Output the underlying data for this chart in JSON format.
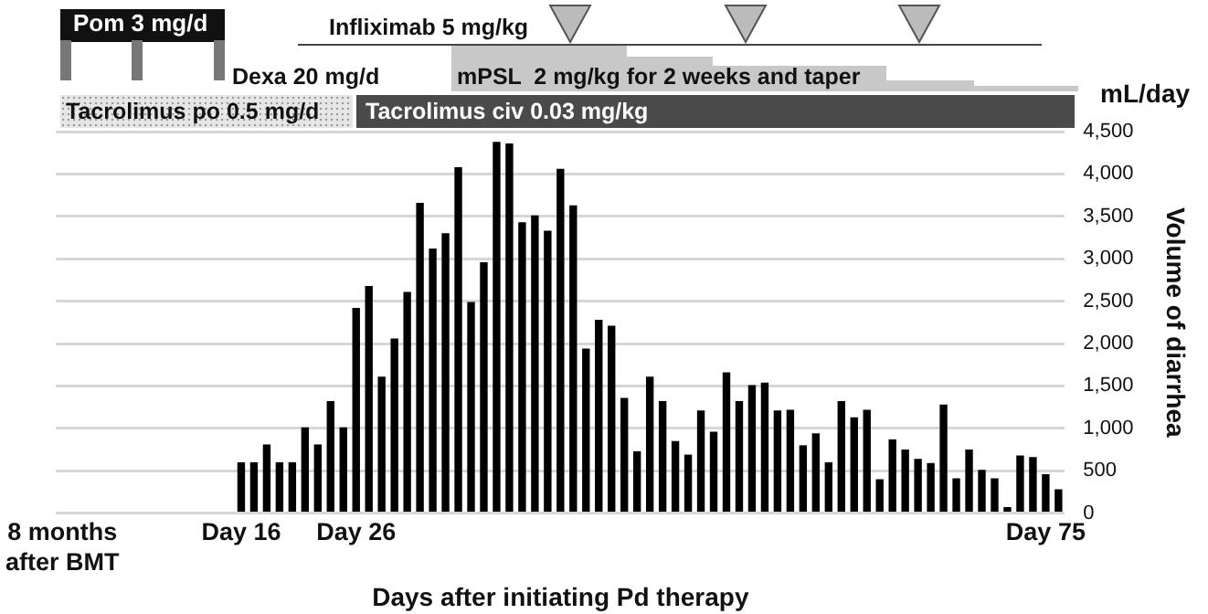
{
  "chart_data": {
    "type": "bar",
    "xlabel": "Days after initiating Pd therapy",
    "ylabel": "Volume of diarrhea",
    "annotations": [
      "Pom 3 mg/d",
      "Dexa 20 mg/d",
      "Infliximab 5 mg/kg",
      "mPSL  2 mg/kg for 2 weeks and taper",
      "Tacrolimus po 0.5 mg/d",
      "Tacrolimus civ 0.03 mg/kg",
      "mL/day"
    ],
    "categories": [
      "8 months\nafter BMT",
      null,
      null,
      null,
      null,
      null,
      null,
      null,
      null,
      null,
      null,
      null,
      null,
      null,
      "Day 16",
      null,
      null,
      null,
      null,
      null,
      null,
      null,
      null,
      "Day 26",
      null,
      null,
      null,
      null,
      null,
      null,
      null,
      null,
      null,
      null,
      null,
      null,
      null,
      null,
      null,
      null,
      null,
      null,
      null,
      null,
      null,
      null,
      null,
      null,
      null,
      null,
      null,
      null,
      null,
      null,
      null,
      null,
      null,
      null,
      null,
      null,
      null,
      null,
      null,
      null,
      null,
      null,
      null,
      null,
      null,
      null,
      null,
      null,
      null,
      null,
      null,
      null,
      null,
      "Day 75",
      null
    ],
    "values": [
      null,
      null,
      null,
      null,
      null,
      null,
      null,
      null,
      null,
      null,
      null,
      null,
      null,
      null,
      600,
      600,
      810,
      600,
      600,
      1010,
      810,
      1320,
      1010,
      2420,
      2680,
      1610,
      2060,
      2610,
      3660,
      3120,
      3300,
      4080,
      2490,
      2960,
      4380,
      4360,
      3430,
      3510,
      3330,
      4060,
      3630,
      1940,
      2280,
      2210,
      1360,
      730,
      1610,
      1320,
      850,
      690,
      1210,
      960,
      1660,
      1320,
      1510,
      1540,
      1210,
      1220,
      800,
      940,
      600,
      1320,
      1130,
      1220,
      400,
      870,
      750,
      640,
      590,
      1280,
      410,
      750,
      510,
      410,
      70,
      680,
      660,
      460,
      280
    ],
    "color": "#000000",
    "ylim": [
      0,
      4500
    ],
    "yticks": [
      0,
      500,
      {
        "value": 1000,
        "label": "1,000"
      },
      {
        "value": 1500,
        "label": "1,500"
      },
      {
        "value": 2000,
        "label": "2,000"
      },
      {
        "value": 2500,
        "label": "2,500"
      },
      {
        "value": 3000,
        "label": "3,000"
      },
      {
        "value": 3500,
        "label": "3,500"
      },
      {
        "value": 4000,
        "label": "4,000"
      },
      {
        "value": 4500,
        "label": "4,500"
      }
    ],
    "grid": "y",
    "legend": false
  }
}
